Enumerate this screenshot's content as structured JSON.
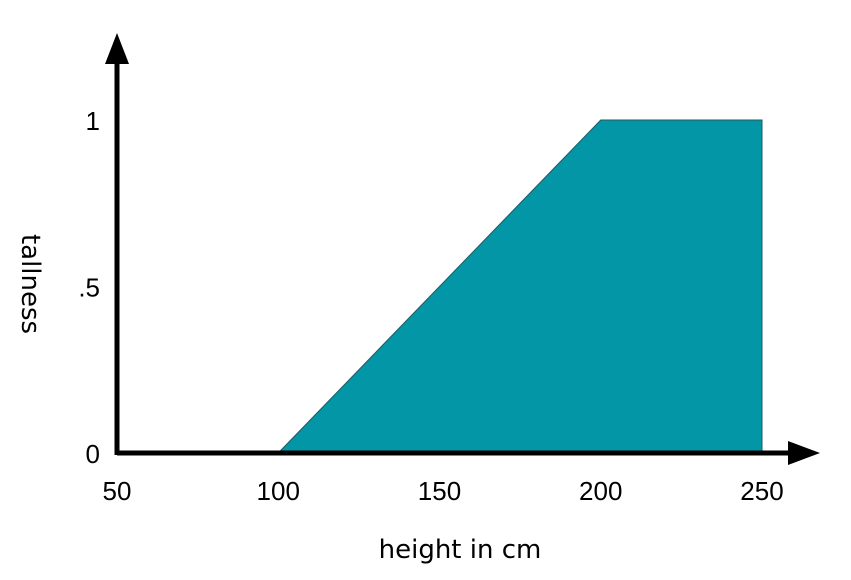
{
  "chart_data": {
    "type": "area",
    "x": [
      100,
      200,
      250
    ],
    "y": [
      0,
      1,
      1
    ],
    "fill_color": "#0396A6",
    "xlabel": "height in cm",
    "ylabel": "tallness",
    "xticks": [
      50,
      100,
      150,
      200,
      250
    ],
    "xtick_labels": [
      "50",
      "100",
      "150",
      "200",
      "250"
    ],
    "yticks": [
      0,
      0.5,
      1
    ],
    "ytick_labels": [
      "0",
      ".5",
      "1"
    ],
    "xlim": [
      50,
      250
    ],
    "ylim": [
      0,
      1
    ],
    "grid": false
  }
}
